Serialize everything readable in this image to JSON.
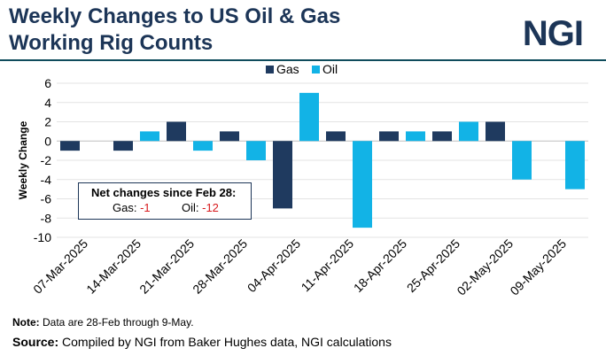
{
  "header": {
    "title_line1": "Weekly Changes to US Oil & Gas",
    "title_line2": "Working Rig Counts",
    "logo": "NGI"
  },
  "colors": {
    "gas": "#1f3a5f",
    "oil": "#12b3e6",
    "brand": "#1c3557"
  },
  "chart_data": {
    "type": "bar",
    "ylabel": "Weekly Change",
    "ylim": [
      -10,
      6
    ],
    "yticks": [
      6,
      4,
      2,
      0,
      -2,
      -4,
      -6,
      -8,
      -10
    ],
    "grid": true,
    "legend_position": "top-center",
    "categories": [
      "07-Mar-2025",
      "14-Mar-2025",
      "21-Mar-2025",
      "28-Mar-2025",
      "04-Apr-2025",
      "11-Apr-2025",
      "18-Apr-2025",
      "25-Apr-2025",
      "02-May-2025",
      "09-May-2025"
    ],
    "series": [
      {
        "name": "Gas",
        "color": "#1f3a5f",
        "values": [
          -1,
          -1,
          2,
          1,
          -7,
          1,
          1,
          1,
          2,
          0
        ]
      },
      {
        "name": "Oil",
        "color": "#12b3e6",
        "values": [
          0,
          1,
          -1,
          -2,
          5,
          -9,
          1,
          2,
          -4,
          -5
        ]
      }
    ]
  },
  "net_changes": {
    "heading": "Net changes since Feb 28:",
    "gas_label": "Gas:",
    "gas_value": "-1",
    "oil_label": "Oil:",
    "oil_value": "-12"
  },
  "footer": {
    "note_label": "Note:",
    "note_text": " Data are 28-Feb through 9-May.",
    "source_label": "Source:",
    "source_text": " Compiled by NGI from Baker Hughes data, NGI calculations"
  }
}
